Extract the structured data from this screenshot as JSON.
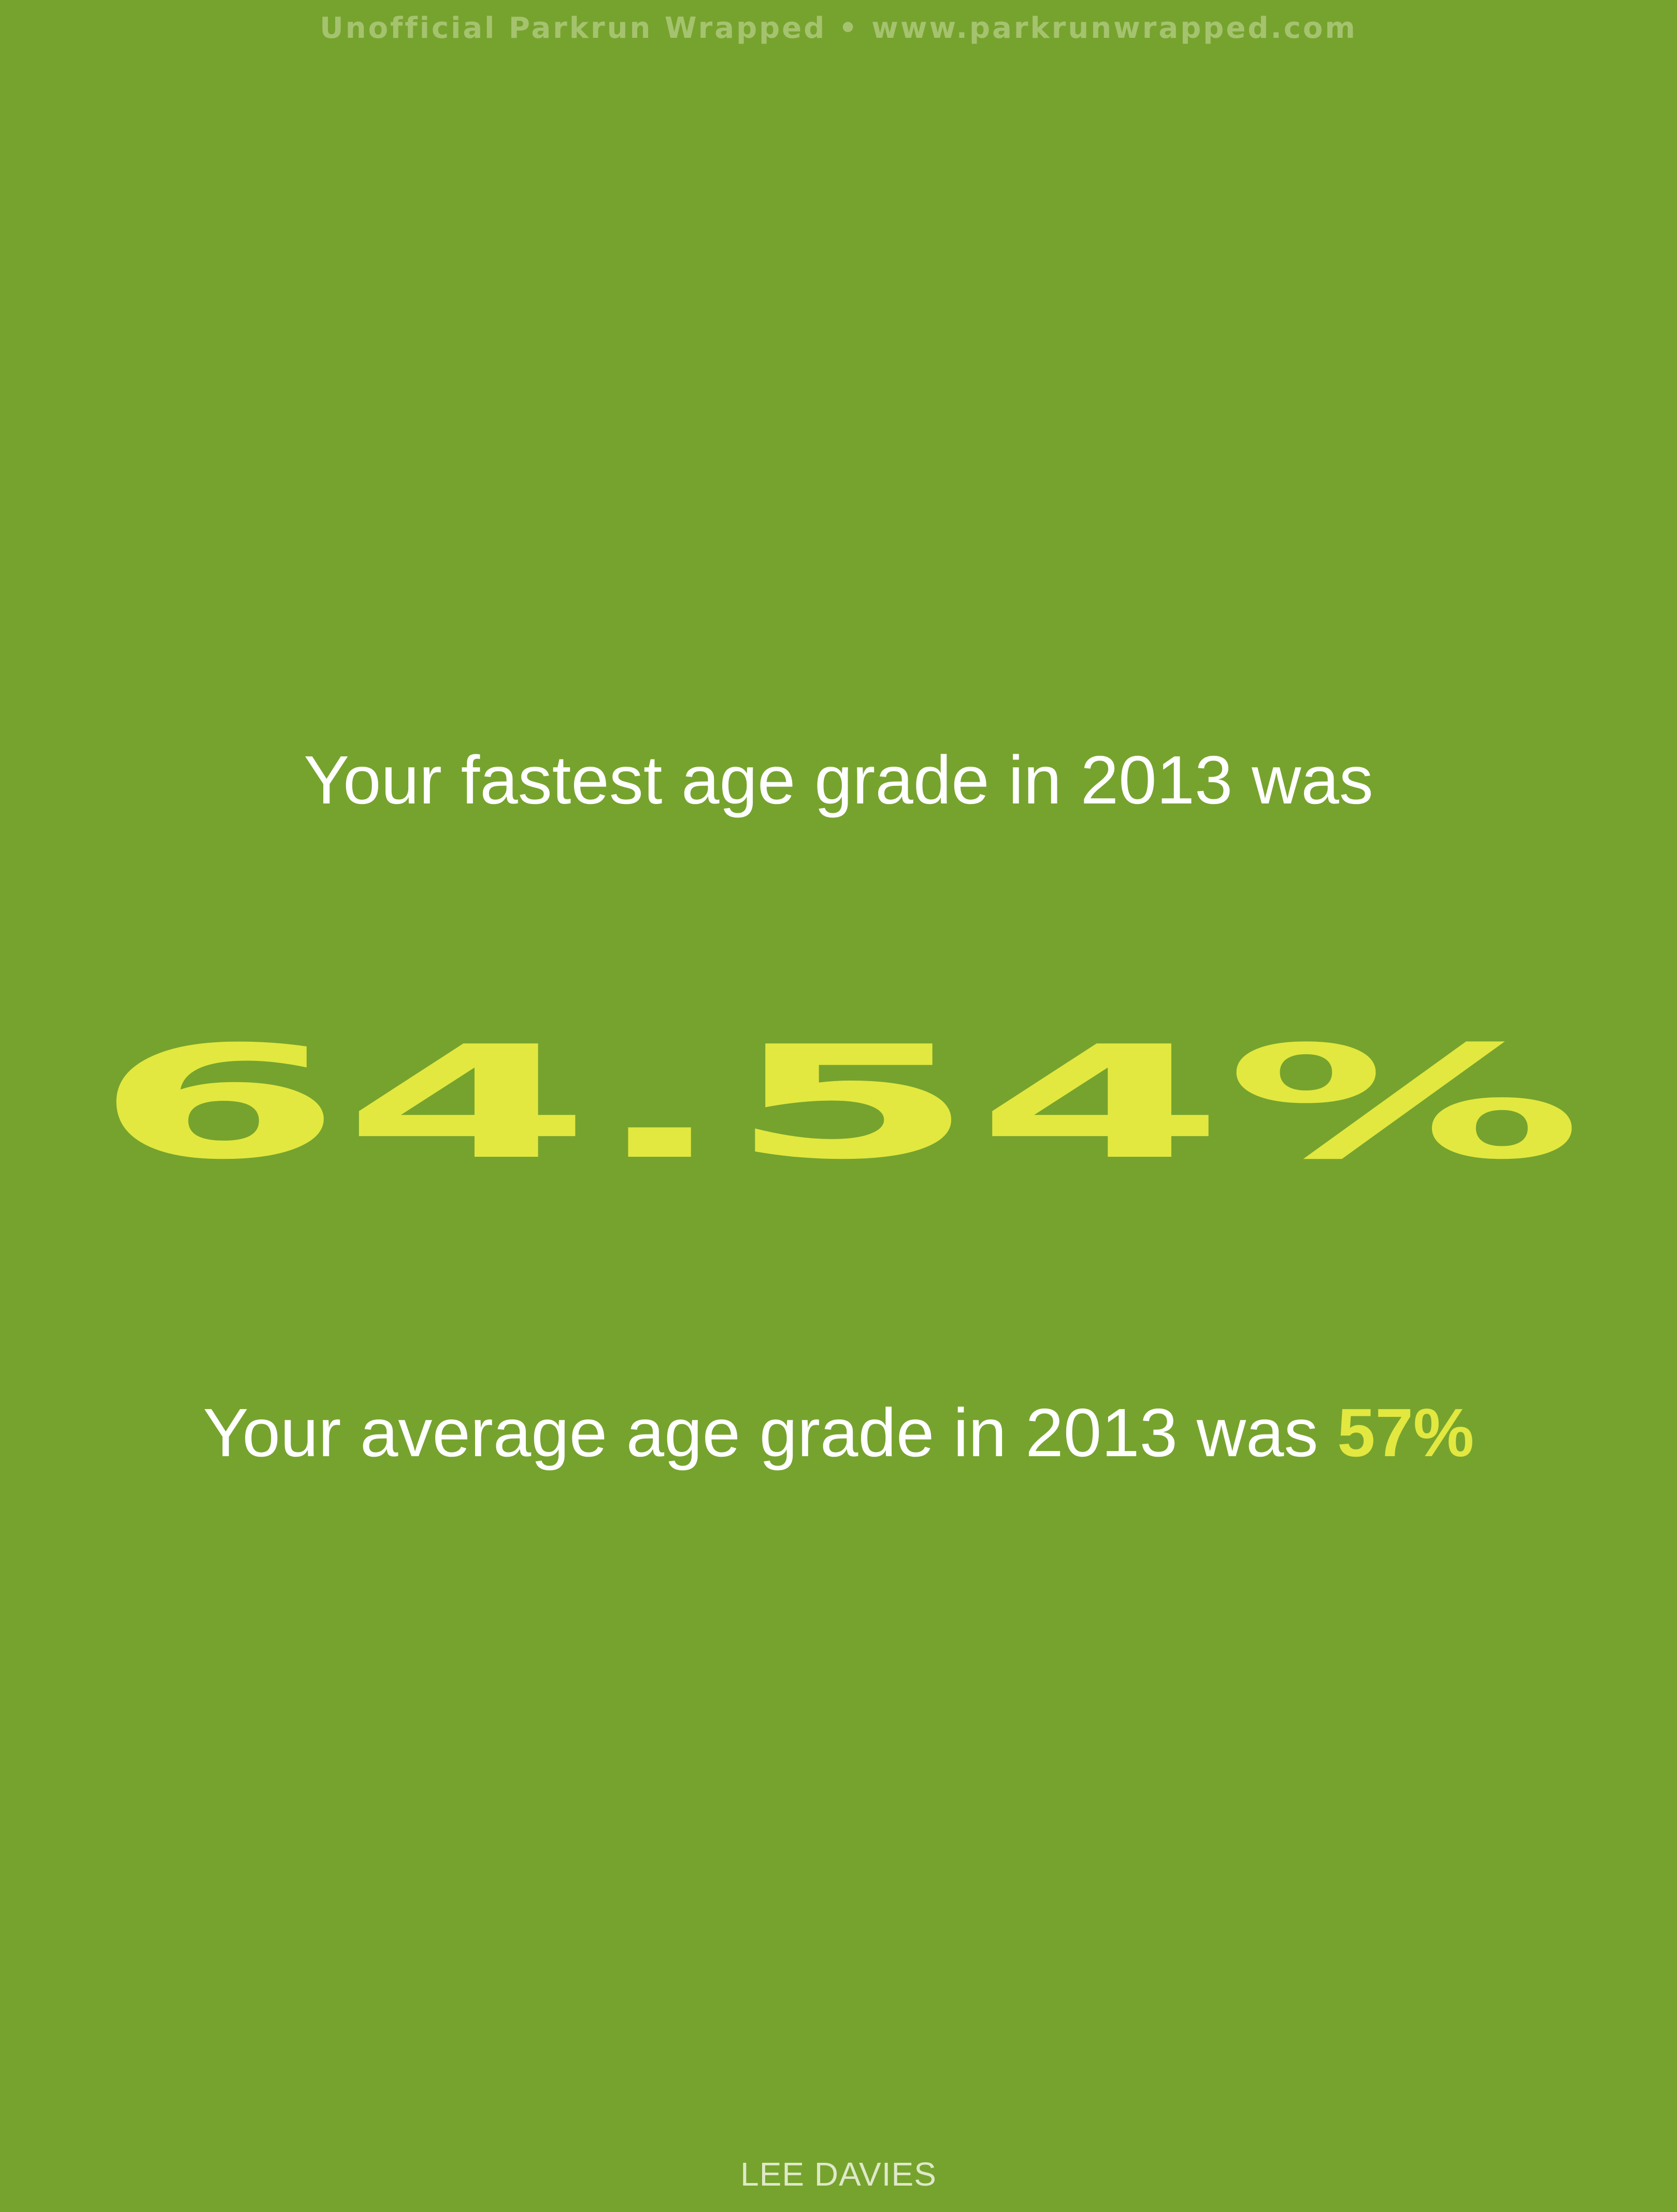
{
  "header": {
    "text": "Unofficial Parkrun Wrapped • www.parkrunwrapped.com"
  },
  "headline": {
    "text": "Your fastest age grade in 2013 was"
  },
  "stat": {
    "value": "64.54%"
  },
  "average": {
    "prefix": "Your average age grade in 2013 was",
    "value": "57%"
  },
  "footer": {
    "name": "LEE DAVIES"
  },
  "colors": {
    "background": "#76a32e",
    "accent": "#e2e840",
    "text": "#ffffff",
    "header_text": "#a5c36e"
  }
}
